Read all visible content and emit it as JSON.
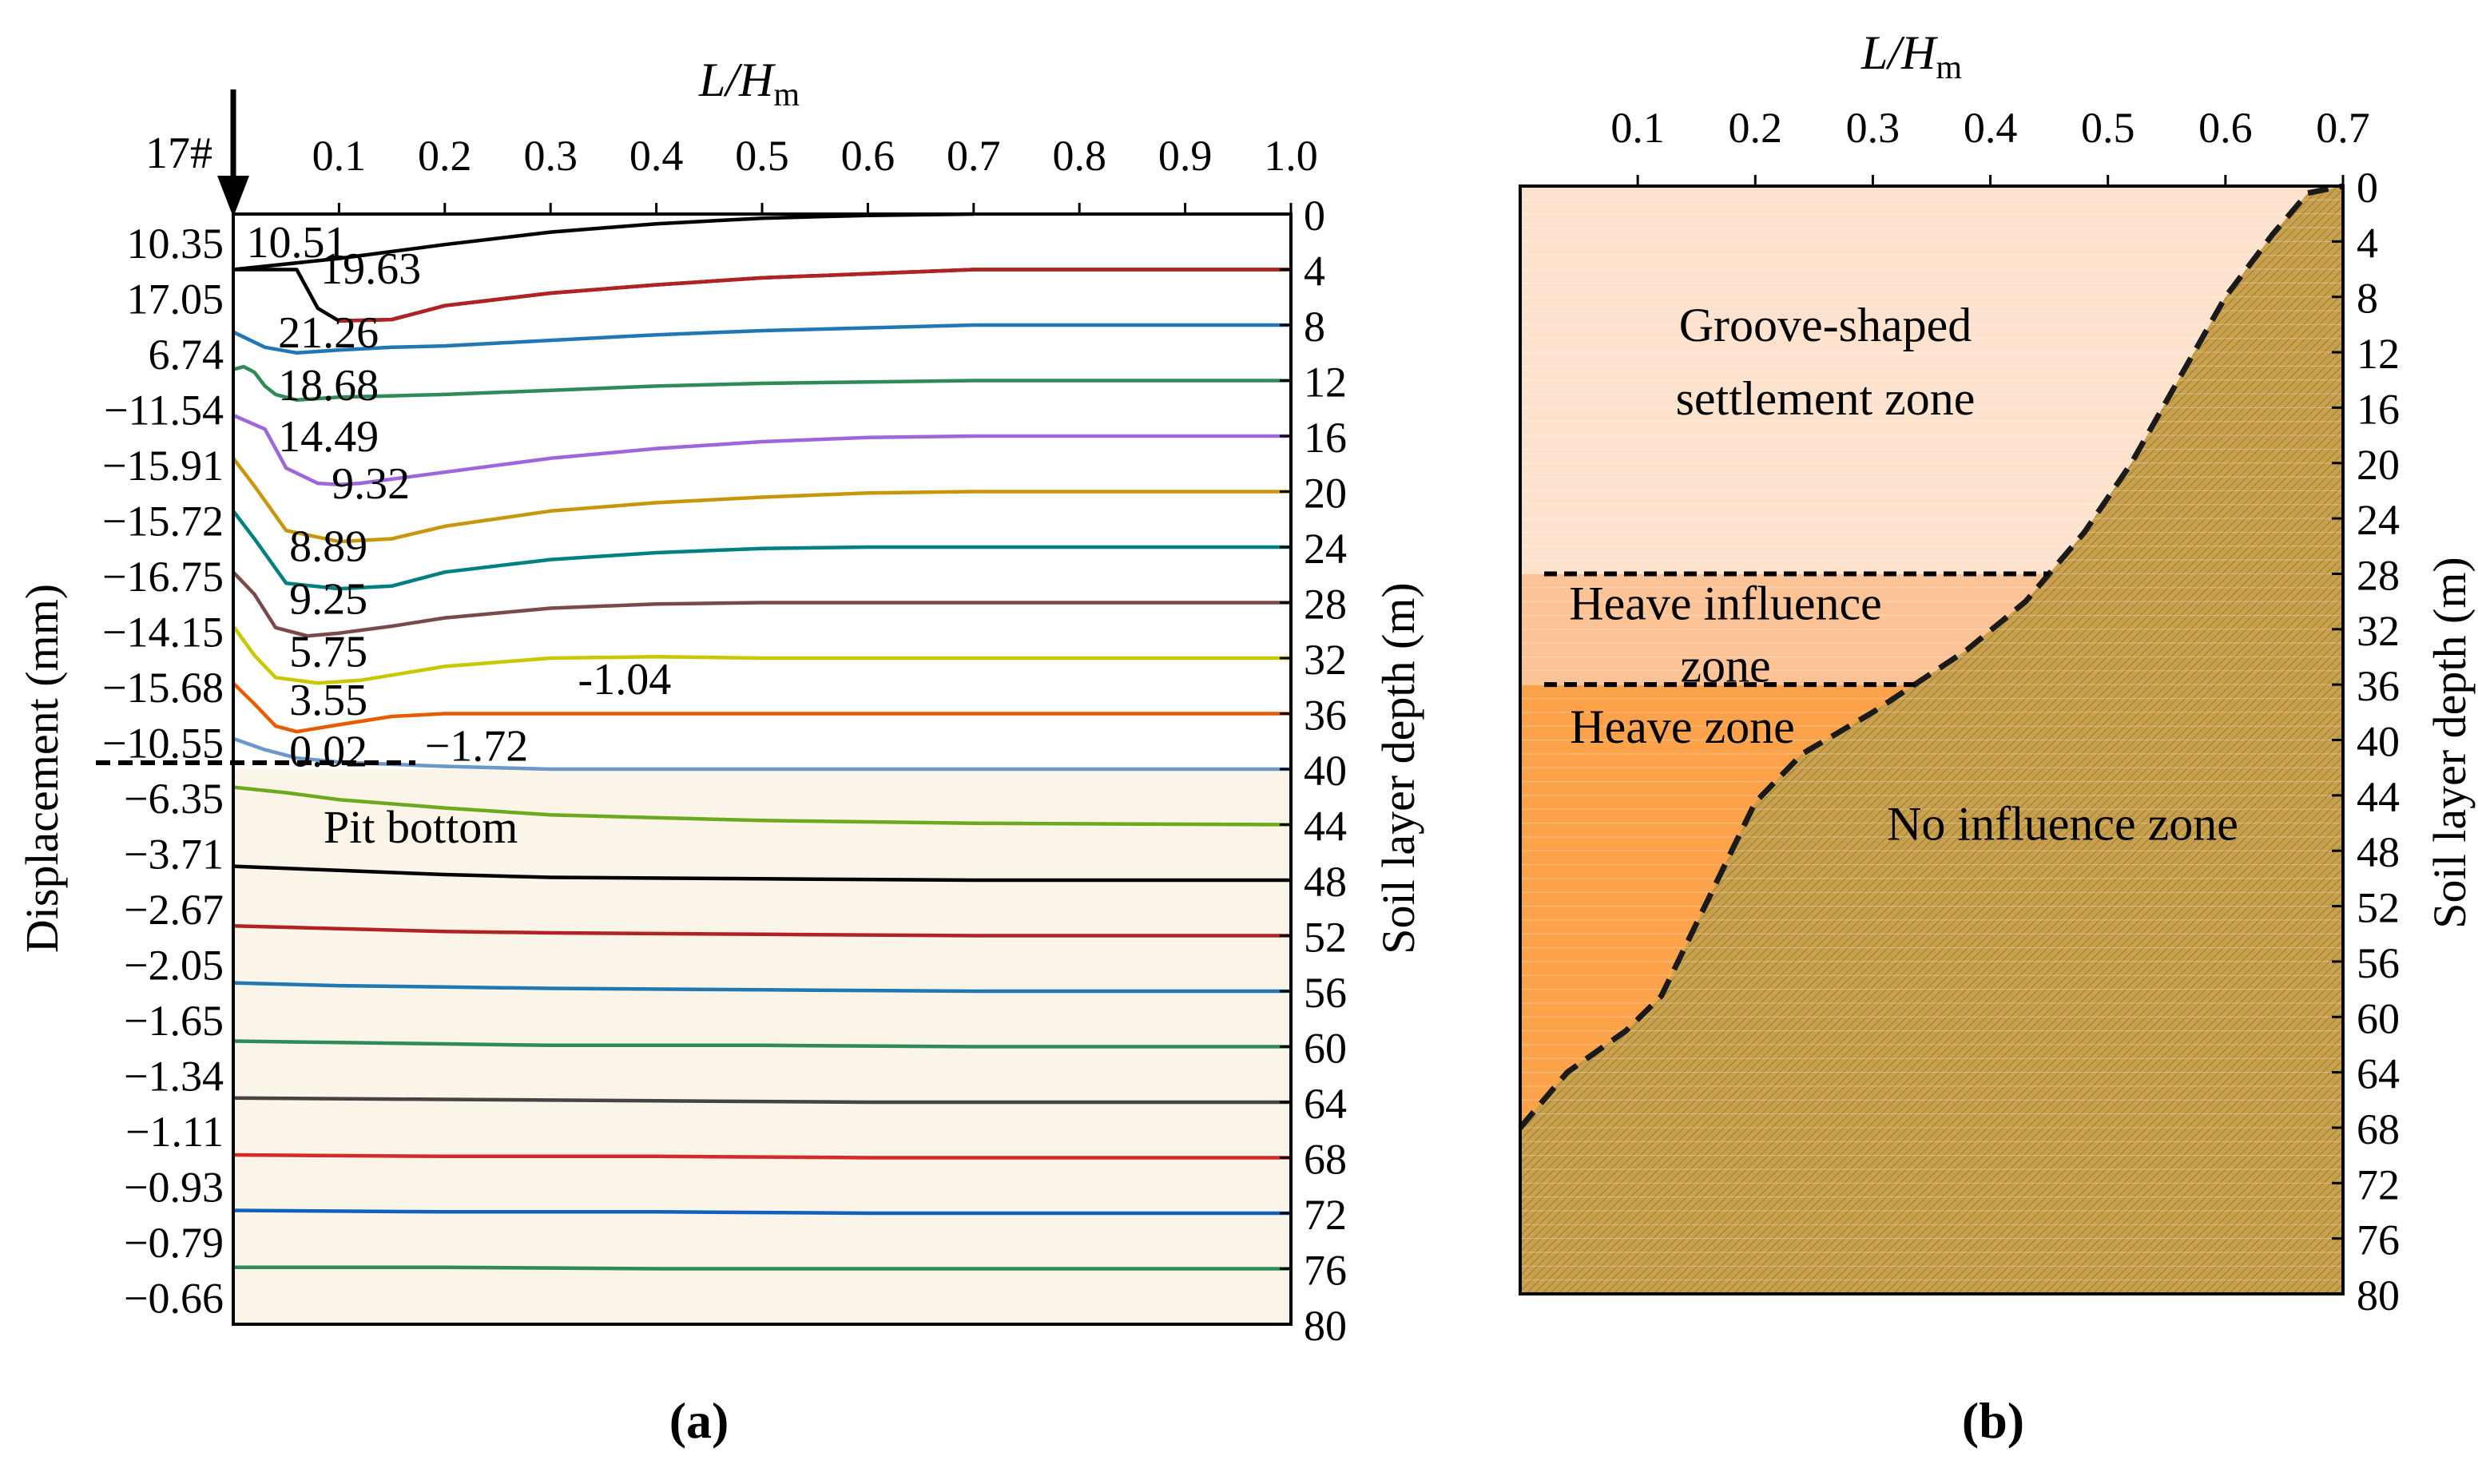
{
  "figure": {
    "panel_a_label": "(a)",
    "panel_b_label": "(b)"
  },
  "chart_data": [
    {
      "panel": "a",
      "type": "line",
      "title": "",
      "xlabel_main": "L/H",
      "xlabel_sub": "m",
      "xlim": [
        0,
        1.0
      ],
      "xticks": [
        "0.1",
        "0.2",
        "0.3",
        "0.4",
        "0.5",
        "0.6",
        "0.7",
        "0.8",
        "0.9",
        "1.0"
      ],
      "left_ylabel": "Displacement (mm)",
      "right_ylabel": "Soil layer depth (m)",
      "ylim": [
        0,
        80
      ],
      "depth_ticks": [
        "0",
        "4",
        "8",
        "12",
        "16",
        "20",
        "24",
        "28",
        "32",
        "36",
        "40",
        "44",
        "48",
        "52",
        "56",
        "60",
        "64",
        "68",
        "72",
        "76",
        "80"
      ],
      "wall_label": "17#",
      "pit_bottom_label": "Pit bottom",
      "pit_bottom_depth": 40,
      "left_displacement_labels": [
        "10.35",
        "17.05",
        "6.74",
        "−11.54",
        "−15.91",
        "−15.72",
        "−16.75",
        "−14.15",
        "−15.68",
        "−10.55",
        "−6.35",
        "−3.71",
        "−2.67",
        "−2.05",
        "−1.65",
        "−1.34",
        "−1.11",
        "−0.93",
        "−0.79",
        "−0.66"
      ],
      "series": [
        {
          "name": "0 m",
          "color": "#000000",
          "x": [
            0.0,
            0.1,
            0.2,
            0.3,
            0.4,
            0.5,
            0.6,
            0.7
          ],
          "y": [
            4.0,
            3.2,
            2.2,
            1.3,
            0.7,
            0.3,
            0.1,
            0.0
          ]
        },
        {
          "name": "4 m",
          "color": "#000000",
          "x": [
            0.0,
            0.06,
            0.08,
            0.1,
            0.15,
            0.2,
            0.3,
            0.4,
            0.5,
            0.6,
            0.7,
            1.0
          ],
          "y": [
            4.0,
            4.0,
            6.8,
            7.7,
            7.6,
            6.6,
            5.7,
            5.1,
            4.6,
            4.3,
            4.0,
            4.0
          ]
        },
        {
          "name": "4 m (red)",
          "color": "#b22222",
          "x": [
            0.1,
            0.15,
            0.2,
            0.3,
            0.4,
            0.5,
            0.6,
            0.7,
            1.0
          ],
          "y": [
            7.7,
            7.6,
            6.6,
            5.7,
            5.1,
            4.6,
            4.3,
            4.0,
            4.0
          ]
        },
        {
          "name": "8 m",
          "color": "#1f77b4",
          "x": [
            0.0,
            0.03,
            0.06,
            0.1,
            0.15,
            0.2,
            0.3,
            0.4,
            0.5,
            0.6,
            0.7,
            1.0
          ],
          "y": [
            8.5,
            9.6,
            10.0,
            9.8,
            9.6,
            9.5,
            9.1,
            8.7,
            8.4,
            8.2,
            8.0,
            8.0
          ]
        },
        {
          "name": "12 m",
          "color": "#2e8b57",
          "x": [
            0.0,
            0.01,
            0.02,
            0.03,
            0.04,
            0.06,
            0.1,
            0.15,
            0.2,
            0.3,
            0.4,
            0.5,
            0.6,
            0.7,
            1.0
          ],
          "y": [
            11.2,
            11.0,
            11.4,
            12.4,
            13.0,
            13.4,
            13.2,
            13.1,
            13.0,
            12.7,
            12.4,
            12.2,
            12.1,
            12.0,
            12.0
          ]
        },
        {
          "name": "16 m",
          "color": "#a064dc",
          "x": [
            0.0,
            0.03,
            0.05,
            0.08,
            0.1,
            0.12,
            0.15,
            0.2,
            0.3,
            0.4,
            0.5,
            0.6,
            0.7,
            1.0
          ],
          "y": [
            14.5,
            15.5,
            18.3,
            19.4,
            19.5,
            19.4,
            19.1,
            18.6,
            17.6,
            16.9,
            16.4,
            16.1,
            16.0,
            16.0
          ]
        },
        {
          "name": "20 m",
          "color": "#c8960a",
          "x": [
            0.0,
            0.02,
            0.05,
            0.1,
            0.15,
            0.2,
            0.3,
            0.4,
            0.5,
            0.6,
            0.7,
            1.0
          ],
          "y": [
            17.6,
            19.6,
            22.8,
            23.6,
            23.4,
            22.5,
            21.4,
            20.8,
            20.4,
            20.1,
            20.0,
            20.0
          ]
        },
        {
          "name": "24 m",
          "color": "#008080",
          "x": [
            0.0,
            0.02,
            0.05,
            0.1,
            0.15,
            0.2,
            0.3,
            0.4,
            0.5,
            0.6,
            0.7,
            1.0
          ],
          "y": [
            21.4,
            23.4,
            26.6,
            27.0,
            26.8,
            25.8,
            24.9,
            24.4,
            24.1,
            24.0,
            24.0,
            24.0
          ]
        },
        {
          "name": "28 m",
          "color": "#7a4a4a",
          "x": [
            0.0,
            0.02,
            0.04,
            0.07,
            0.1,
            0.15,
            0.2,
            0.3,
            0.4,
            0.5,
            0.7,
            1.0
          ],
          "y": [
            25.8,
            27.4,
            29.8,
            30.4,
            30.2,
            29.7,
            29.1,
            28.4,
            28.1,
            28.0,
            28.0,
            28.0
          ]
        },
        {
          "name": "32 m",
          "color": "#c8c800",
          "x": [
            0.0,
            0.02,
            0.04,
            0.08,
            0.12,
            0.2,
            0.3,
            0.4,
            0.5,
            0.7,
            1.0
          ],
          "y": [
            29.7,
            31.8,
            33.4,
            33.8,
            33.6,
            32.6,
            32.0,
            31.9,
            32.0,
            32.0,
            32.0
          ]
        },
        {
          "name": "36 m",
          "color": "#e65c00",
          "x": [
            0.0,
            0.02,
            0.04,
            0.06,
            0.1,
            0.15,
            0.2,
            0.3,
            0.4,
            0.5,
            0.7,
            1.0
          ],
          "y": [
            33.8,
            35.3,
            36.9,
            37.3,
            36.8,
            36.2,
            36.0,
            36.0,
            36.0,
            36.0,
            36.0,
            36.0
          ]
        },
        {
          "name": "40 m",
          "color": "#6a98c8",
          "x": [
            0.0,
            0.03,
            0.06,
            0.1,
            0.2,
            0.3,
            0.5,
            0.7,
            1.0
          ],
          "y": [
            37.8,
            38.6,
            39.2,
            39.5,
            39.8,
            40.0,
            40.0,
            40.0,
            40.0
          ]
        },
        {
          "name": "44 m",
          "color": "#6aaa1e",
          "x": [
            0.0,
            0.05,
            0.1,
            0.2,
            0.3,
            0.5,
            0.7,
            1.0
          ],
          "y": [
            41.3,
            41.7,
            42.2,
            42.8,
            43.3,
            43.7,
            43.9,
            44.0
          ]
        },
        {
          "name": "48 m",
          "color": "#000000",
          "x": [
            0.0,
            0.1,
            0.2,
            0.3,
            0.5,
            0.7,
            1.0
          ],
          "y": [
            47.0,
            47.3,
            47.6,
            47.8,
            47.9,
            48.0,
            48.0
          ]
        },
        {
          "name": "52 m",
          "color": "#b22222",
          "x": [
            0.0,
            0.1,
            0.2,
            0.3,
            0.5,
            0.7,
            1.0
          ],
          "y": [
            51.3,
            51.5,
            51.7,
            51.8,
            51.9,
            52.0,
            52.0
          ]
        },
        {
          "name": "56 m",
          "color": "#1f77b4",
          "x": [
            0.0,
            0.1,
            0.2,
            0.3,
            0.5,
            0.7,
            1.0
          ],
          "y": [
            55.4,
            55.6,
            55.7,
            55.8,
            55.9,
            56.0,
            56.0
          ]
        },
        {
          "name": "60 m",
          "color": "#2e8b57",
          "x": [
            0.0,
            0.1,
            0.2,
            0.3,
            0.5,
            0.7,
            1.0
          ],
          "y": [
            59.6,
            59.7,
            59.8,
            59.9,
            59.9,
            60.0,
            60.0
          ]
        },
        {
          "name": "64 m",
          "color": "#444444",
          "x": [
            0.0,
            0.2,
            0.4,
            0.6,
            1.0
          ],
          "y": [
            63.7,
            63.8,
            63.9,
            64.0,
            64.0
          ]
        },
        {
          "name": "68 m",
          "color": "#d42a2a",
          "x": [
            0.0,
            0.2,
            0.4,
            0.6,
            1.0
          ],
          "y": [
            67.8,
            67.9,
            67.9,
            68.0,
            68.0
          ]
        },
        {
          "name": "72 m",
          "color": "#1060c0",
          "x": [
            0.0,
            0.2,
            0.4,
            0.6,
            1.0
          ],
          "y": [
            71.8,
            71.9,
            71.9,
            72.0,
            72.0
          ]
        },
        {
          "name": "76 m",
          "color": "#2e8b57",
          "x": [
            0.0,
            0.2,
            0.4,
            0.6,
            1.0
          ],
          "y": [
            75.9,
            75.9,
            76.0,
            76.0,
            76.0
          ]
        }
      ],
      "annotations": [
        {
          "text": "10.51",
          "x": 0.06,
          "y": 3.1
        },
        {
          "text": "19.63",
          "x": 0.13,
          "y": 5.0
        },
        {
          "text": "21.26",
          "x": 0.09,
          "y": 9.6
        },
        {
          "text": "18.68",
          "x": 0.09,
          "y": 13.4
        },
        {
          "text": "14.49",
          "x": 0.09,
          "y": 17.1
        },
        {
          "text": "9.32",
          "x": 0.13,
          "y": 20.5
        },
        {
          "text": "8.89",
          "x": 0.09,
          "y": 25.0
        },
        {
          "text": "9.25",
          "x": 0.09,
          "y": 28.8
        },
        {
          "text": "5.75",
          "x": 0.09,
          "y": 32.6
        },
        {
          "text": "3.55",
          "x": 0.09,
          "y": 36.1
        },
        {
          "text": "-1.04",
          "x": 0.37,
          "y": 34.6
        },
        {
          "text": "0.02",
          "x": 0.09,
          "y": 39.8
        },
        {
          "text": "−1.72",
          "x": 0.23,
          "y": 39.4
        }
      ]
    },
    {
      "panel": "b",
      "type": "area",
      "title": "",
      "xlabel_main": "L/H",
      "xlabel_sub": "m",
      "xlim": [
        0,
        0.7
      ],
      "xticks": [
        "0.1",
        "0.2",
        "0.3",
        "0.4",
        "0.5",
        "0.6",
        "0.7"
      ],
      "ylabel": "Soil layer depth (m)",
      "ylim": [
        0,
        80
      ],
      "depth_ticks": [
        "0",
        "4",
        "8",
        "12",
        "16",
        "20",
        "24",
        "28",
        "32",
        "36",
        "40",
        "44",
        "48",
        "52",
        "56",
        "60",
        "64",
        "68",
        "72",
        "76",
        "80"
      ],
      "boundary": {
        "x": [
          0.0,
          0.04,
          0.09,
          0.12,
          0.2,
          0.24,
          0.3,
          0.38,
          0.43,
          0.48,
          0.52,
          0.56,
          0.6,
          0.64,
          0.67,
          0.7
        ],
        "y": [
          68.0,
          64.0,
          61.0,
          58.5,
          44.5,
          41.0,
          38.0,
          33.5,
          30.0,
          25.0,
          20.0,
          14.0,
          8.0,
          3.5,
          0.5,
          0.0
        ]
      },
      "zone_divisions": [
        28,
        36
      ],
      "zones": {
        "settlement_line1": "Groove-shaped",
        "settlement_line2": "settlement zone",
        "heave_influence_line1": "Heave influence",
        "heave_influence_line2": "zone",
        "heave": "Heave  zone",
        "no_influence": "No influence zone"
      },
      "colors": {
        "settlement": "#fde3cd",
        "heave_influence": "#fcc496",
        "heave": "#fba24b",
        "no_influence": "#c8a04e",
        "no_influence_grid": "#a38238"
      }
    }
  ]
}
